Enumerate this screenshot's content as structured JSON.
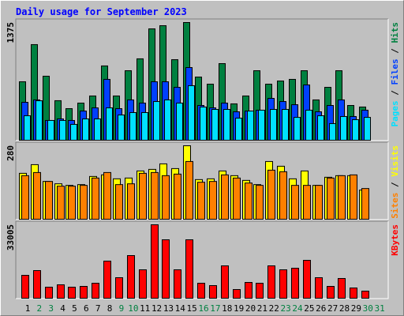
{
  "chart_data": [
    {
      "type": "bar",
      "title": "Daily usage for September 2023",
      "ylim": [
        0,
        1375
      ],
      "yticks": [
        1375
      ],
      "legend_separator": " / ",
      "series": [
        {
          "name": "Hits",
          "color": "#008040",
          "values": [
            683,
            1117,
            748,
            462,
            369,
            434,
            517,
            868,
            517,
            812,
            951,
            1301,
            1338,
            941,
            1375,
            738,
            655,
            895,
            425,
            517,
            812,
            655,
            692,
            711,
            812,
            471,
            618,
            812,
            406,
            388,
            null
          ]
        },
        {
          "name": "Files",
          "color": "#0040ff",
          "values": [
            443,
            471,
            231,
            249,
            231,
            341,
            378,
            711,
            369,
            471,
            434,
            683,
            683,
            618,
            849,
            406,
            378,
            434,
            332,
            341,
            351,
            489,
            452,
            415,
            646,
            332,
            406,
            471,
            277,
            351,
            null
          ]
        },
        {
          "name": "Pages",
          "color": "#00e0ff",
          "values": [
            286,
            461,
            231,
            231,
            185,
            249,
            249,
            378,
            295,
            323,
            323,
            452,
            471,
            434,
            637,
            388,
            360,
            360,
            258,
            341,
            351,
            360,
            360,
            267,
            351,
            286,
            194,
            277,
            240,
            267,
            null
          ]
        }
      ]
    },
    {
      "type": "bar",
      "ylim": [
        0,
        280
      ],
      "yticks": [
        280
      ],
      "legend_separator": " / ",
      "series": [
        {
          "name": "Visits",
          "color": "#ffff00",
          "values": [
            175,
            208,
            144,
            135,
            129,
            132,
            163,
            169,
            154,
            157,
            184,
            190,
            211,
            193,
            280,
            151,
            154,
            184,
            166,
            148,
            132,
            220,
            202,
            154,
            184,
            129,
            160,
            166,
            166,
            111,
            null
          ]
        },
        {
          "name": "Sites",
          "color": "#ff8000",
          "values": [
            166,
            178,
            144,
            126,
            126,
            129,
            157,
            178,
            132,
            135,
            175,
            178,
            166,
            172,
            220,
            141,
            144,
            169,
            157,
            138,
            129,
            187,
            181,
            129,
            129,
            129,
            157,
            166,
            169,
            117,
            null
          ]
        }
      ]
    },
    {
      "type": "bar",
      "ylim": [
        0,
        33005
      ],
      "yticks": [
        33005
      ],
      "categories": [
        1,
        2,
        3,
        4,
        5,
        6,
        7,
        8,
        9,
        10,
        11,
        12,
        13,
        14,
        15,
        16,
        17,
        18,
        19,
        20,
        21,
        22,
        23,
        24,
        25,
        26,
        27,
        28,
        29,
        30,
        31
      ],
      "category_colors": [
        "#000000",
        "#008040",
        "#008040",
        "#000000",
        "#000000",
        "#000000",
        "#000000",
        "#000000",
        "#008040",
        "#008040",
        "#000000",
        "#000000",
        "#000000",
        "#000000",
        "#000000",
        "#008040",
        "#008040",
        "#000000",
        "#000000",
        "#000000",
        "#000000",
        "#000000",
        "#008040",
        "#008040",
        "#000000",
        "#000000",
        "#000000",
        "#000000",
        "#000000",
        "#008040",
        "#008040"
      ],
      "series": [
        {
          "name": "KBytes",
          "color": "#ff0000",
          "values": [
            10292,
            12421,
            4969,
            6033,
            4969,
            5323,
            6743,
            16680,
            9227,
            19164,
            12776,
            33005,
            26262,
            12776,
            26262,
            6743,
            5678,
            14550,
            3904,
            7098,
            6743,
            14550,
            12776,
            13486,
            17035,
            9227,
            5323,
            8872,
            4614,
            3194,
            null
          ]
        }
      ]
    }
  ]
}
